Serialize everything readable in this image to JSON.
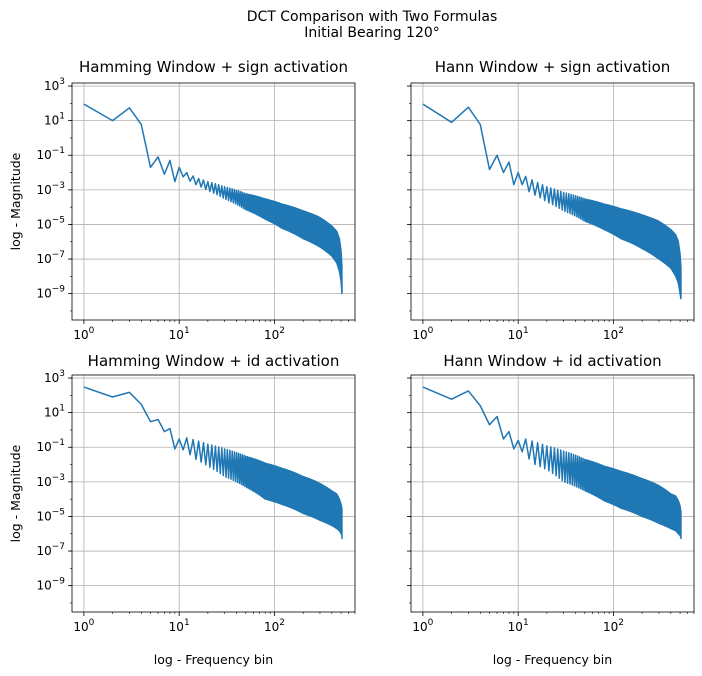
{
  "figure": {
    "suptitle_line1": "DCT Comparison with Two Formulas",
    "suptitle_line2": "Initial Bearing 120°"
  },
  "chart_data": [
    {
      "type": "line",
      "title": "Hamming Window + sign activation",
      "xlabel": "",
      "ylabel": "log - Magnitude",
      "xscale": "log",
      "yscale": "log",
      "xlim": [
        0.75,
        700
      ],
      "ylim": [
        3e-11,
        1500
      ],
      "grid": true,
      "color": "#1f77b4",
      "x_ticks": [
        {
          "value": 1,
          "label": "10^0"
        },
        {
          "value": 10,
          "label": "10^1"
        },
        {
          "value": 100,
          "label": "10^2"
        }
      ],
      "y_ticks": [
        {
          "value": 1e-09,
          "label": "10^-9"
        },
        {
          "value": 1e-07,
          "label": "10^-7"
        },
        {
          "value": 1e-05,
          "label": "10^-5"
        },
        {
          "value": 0.001,
          "label": "10^-3"
        },
        {
          "value": 0.1,
          "label": "10^-1"
        },
        {
          "value": 10,
          "label": "10^1"
        },
        {
          "value": 1000,
          "label": "10^3"
        }
      ],
      "x": [
        1,
        2,
        3,
        4,
        5,
        6,
        7,
        8,
        9,
        10,
        12,
        15,
        20,
        30,
        50,
        80,
        120,
        200,
        300,
        400,
        450,
        480,
        500,
        510,
        512
      ],
      "series": [
        {
          "upper": [
            90,
            10,
            55,
            6,
            0.02,
            0.08,
            0.015,
            0.05,
            0.006,
            0.02,
            0.01,
            0.005,
            0.003,
            0.0015,
            0.0006,
            0.0003,
            0.00015,
            6e-05,
            2.5e-05,
            8e-06,
            4e-06,
            1.5e-06,
            3e-07,
            5e-08,
            1e-09
          ],
          "lower": [
            90,
            10,
            55,
            6,
            0.02,
            0.06,
            0.008,
            0.03,
            0.003,
            0.008,
            0.004,
            0.002,
            0.0009,
            0.0003,
            7e-05,
            2e-05,
            6e-06,
            1.5e-06,
            5e-07,
            1.5e-07,
            6e-08,
            2e-08,
            5e-09,
            1e-09,
            1e-09
          ]
        }
      ]
    },
    {
      "type": "line",
      "title": "Hann Window + sign activation",
      "xlabel": "",
      "ylabel": "",
      "xscale": "log",
      "yscale": "log",
      "xlim": [
        0.75,
        700
      ],
      "ylim": [
        3e-11,
        1500
      ],
      "grid": true,
      "color": "#1f77b4",
      "x_ticks": [
        {
          "value": 1,
          "label": "10^0"
        },
        {
          "value": 10,
          "label": "10^1"
        },
        {
          "value": 100,
          "label": "10^2"
        }
      ],
      "y_ticks": [
        {
          "value": 1e-09,
          "label": ""
        },
        {
          "value": 1e-07,
          "label": ""
        },
        {
          "value": 1e-05,
          "label": ""
        },
        {
          "value": 0.001,
          "label": ""
        },
        {
          "value": 0.1,
          "label": ""
        },
        {
          "value": 10,
          "label": ""
        },
        {
          "value": 1000,
          "label": ""
        }
      ],
      "x": [
        1,
        2,
        3,
        4,
        5,
        6,
        7,
        8,
        9,
        10,
        12,
        15,
        20,
        30,
        50,
        80,
        120,
        200,
        300,
        400,
        450,
        480,
        500,
        510,
        512
      ],
      "series": [
        {
          "upper": [
            90,
            8,
            60,
            6,
            0.015,
            0.1,
            0.02,
            0.04,
            0.005,
            0.01,
            0.006,
            0.003,
            0.0015,
            0.0007,
            0.0003,
            0.00015,
            8e-05,
            3.5e-05,
            1.5e-05,
            5e-06,
            2.5e-06,
            1e-06,
            2e-07,
            4e-08,
            5e-10
          ],
          "lower": [
            90,
            8,
            60,
            6,
            0.015,
            0.08,
            0.01,
            0.02,
            0.002,
            0.004,
            0.001,
            0.0005,
            0.0002,
            6e-05,
            1.5e-05,
            5e-06,
            1.5e-06,
            4e-07,
            1e-07,
            3e-08,
            1e-08,
            4e-09,
            1e-09,
            5e-10,
            5e-10
          ]
        }
      ]
    },
    {
      "type": "line",
      "title": "Hamming Window + id activation",
      "xlabel": "log - Frequency bin",
      "ylabel": "log - Magnitude",
      "xscale": "log",
      "yscale": "log",
      "xlim": [
        0.75,
        700
      ],
      "ylim": [
        3e-11,
        1500
      ],
      "grid": true,
      "color": "#1f77b4",
      "x_ticks": [
        {
          "value": 1,
          "label": "10^0"
        },
        {
          "value": 10,
          "label": "10^1"
        },
        {
          "value": 100,
          "label": "10^2"
        }
      ],
      "y_ticks": [
        {
          "value": 1e-09,
          "label": "10^-9"
        },
        {
          "value": 1e-07,
          "label": "10^-7"
        },
        {
          "value": 1e-05,
          "label": "10^-5"
        },
        {
          "value": 0.001,
          "label": "10^-3"
        },
        {
          "value": 0.1,
          "label": "10^-1"
        },
        {
          "value": 10,
          "label": "10^1"
        },
        {
          "value": 1000,
          "label": "10^3"
        }
      ],
      "x": [
        1,
        2,
        3,
        4,
        5,
        6,
        7,
        8,
        9,
        10,
        12,
        15,
        20,
        30,
        50,
        80,
        120,
        200,
        300,
        400,
        450,
        480,
        500,
        510,
        512
      ],
      "series": [
        {
          "upper": [
            300,
            80,
            150,
            30,
            3,
            4,
            1,
            1.2,
            0.15,
            0.3,
            0.35,
            0.25,
            0.15,
            0.08,
            0.03,
            0.012,
            0.006,
            0.002,
            0.0008,
            0.0003,
            0.0002,
            0.0001,
            5e-05,
            3e-05,
            1e-05
          ],
          "lower": [
            300,
            80,
            150,
            30,
            3,
            2,
            0.8,
            0.6,
            0.08,
            0.1,
            0.05,
            0.02,
            0.008,
            0.002,
            0.0005,
            0.0001,
            5e-05,
            1.5e-05,
            6e-06,
            3e-06,
            2e-06,
            1.5e-06,
            1e-06,
            8e-07,
            5e-07
          ]
        }
      ]
    },
    {
      "type": "line",
      "title": "Hann Window + id activation",
      "xlabel": "log - Frequency bin",
      "ylabel": "",
      "xscale": "log",
      "yscale": "log",
      "xlim": [
        0.75,
        700
      ],
      "ylim": [
        3e-11,
        1500
      ],
      "grid": true,
      "color": "#1f77b4",
      "x_ticks": [
        {
          "value": 1,
          "label": "10^0"
        },
        {
          "value": 10,
          "label": "10^1"
        },
        {
          "value": 100,
          "label": "10^2"
        }
      ],
      "y_ticks": [
        {
          "value": 1e-09,
          "label": ""
        },
        {
          "value": 1e-07,
          "label": ""
        },
        {
          "value": 1e-05,
          "label": ""
        },
        {
          "value": 0.001,
          "label": ""
        },
        {
          "value": 0.1,
          "label": ""
        },
        {
          "value": 10,
          "label": ""
        },
        {
          "value": 1000,
          "label": ""
        }
      ],
      "x": [
        1,
        2,
        3,
        4,
        5,
        6,
        7,
        8,
        9,
        10,
        12,
        15,
        20,
        30,
        50,
        80,
        120,
        200,
        300,
        400,
        450,
        480,
        500,
        510,
        512
      ],
      "series": [
        {
          "upper": [
            300,
            60,
            180,
            25,
            2,
            6,
            0.6,
            0.8,
            0.15,
            0.25,
            0.3,
            0.2,
            0.12,
            0.06,
            0.02,
            0.008,
            0.004,
            0.0015,
            0.0006,
            0.0002,
            0.00015,
            8e-05,
            4e-05,
            2e-05,
            8e-06
          ],
          "lower": [
            300,
            60,
            180,
            25,
            2,
            3,
            0.3,
            0.4,
            0.08,
            0.1,
            0.03,
            0.01,
            0.005,
            0.001,
            0.0003,
            8e-05,
            3e-05,
            1e-05,
            4e-06,
            2e-06,
            1.5e-06,
            1e-06,
            8e-07,
            6e-07,
            5e-07
          ]
        }
      ]
    }
  ]
}
